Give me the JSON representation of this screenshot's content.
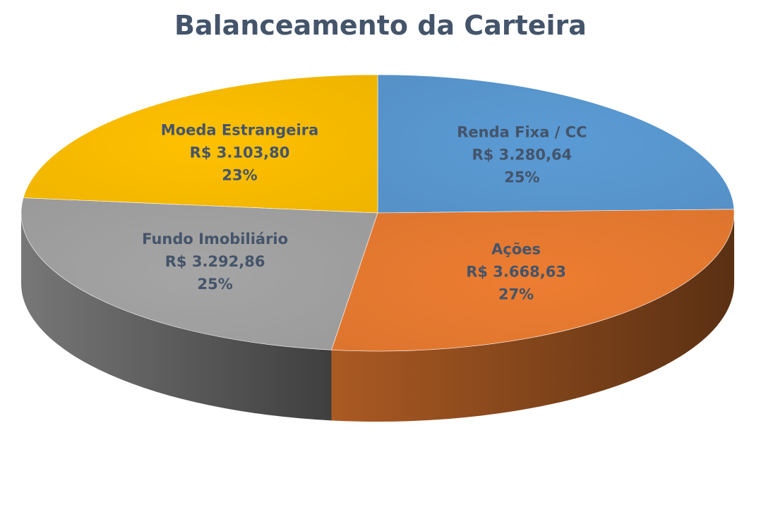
{
  "chart_data": {
    "type": "pie",
    "title": "Balanceamento da Carteira",
    "categories": [
      "Renda Fixa / CC",
      "Ações",
      "Fundo Imobiliário",
      "Moeda Estrangeira"
    ],
    "values": [
      3280.64,
      3668.63,
      3292.86,
      3103.8
    ],
    "value_labels": [
      "R$ 3.280,64",
      "R$ 3.668,63",
      "R$ 3.292,86",
      "R$ 3.103,80"
    ],
    "percent_labels": [
      "25%",
      "27%",
      "25%",
      "23%"
    ],
    "colors": [
      "#5b9bd5",
      "#ed7d31",
      "#a5a5a5",
      "#ffc000"
    ],
    "style": "3d",
    "legend": "none"
  }
}
